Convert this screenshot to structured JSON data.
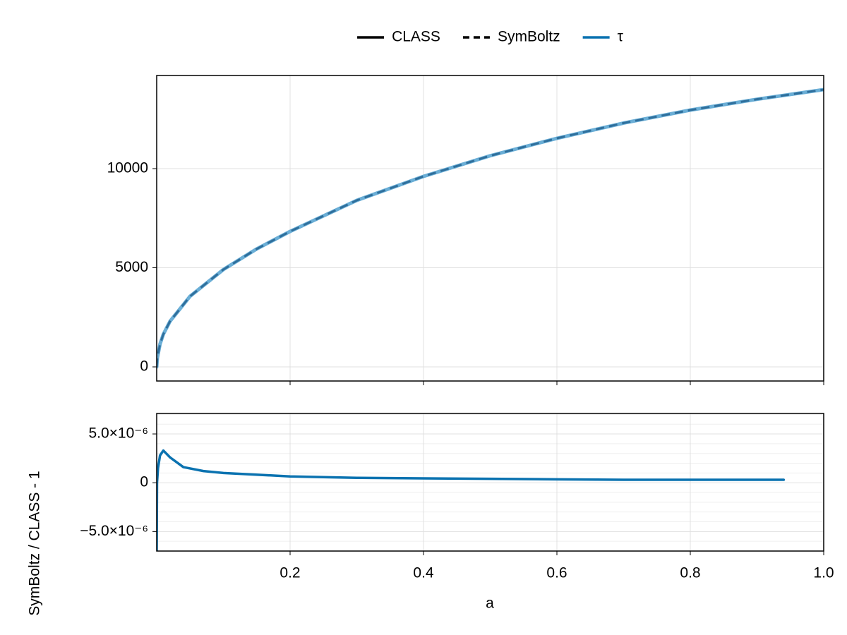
{
  "chart_data": [
    {
      "type": "line",
      "legend": [
        {
          "label": "CLASS",
          "color": "#000000",
          "dash": "solid"
        },
        {
          "label": "SymBoltz",
          "color": "#000000",
          "dash": "dashed"
        },
        {
          "label": "τ",
          "color": "#0a72b0",
          "dash": "solid"
        }
      ],
      "legend_position": "top",
      "x": [
        0,
        0.001,
        0.005,
        0.01,
        0.02,
        0.05,
        0.1,
        0.15,
        0.2,
        0.3,
        0.4,
        0.5,
        0.6,
        0.7,
        0.8,
        0.9,
        1.0
      ],
      "series": [
        {
          "name": "CLASS",
          "color": "#6aaed6",
          "dash": "solid",
          "values": [
            0,
            450,
            1150,
            1650,
            2300,
            3560,
            4911,
            5950,
            6833,
            8400,
            9609,
            10650,
            11530,
            12300,
            12954,
            13500,
            13986
          ]
        },
        {
          "name": "SymBoltz",
          "color": "#2f6f9c",
          "dash": "dashed",
          "values": [
            0,
            450,
            1150,
            1650,
            2300,
            3560,
            4911,
            5950,
            6833,
            8400,
            9609,
            10650,
            11530,
            12300,
            12954,
            13500,
            13986
          ]
        }
      ],
      "xlim": [
        0,
        1
      ],
      "xticks": [
        0.2,
        0.4,
        0.6,
        0.8,
        {
          "value": 1,
          "label": "1.0"
        }
      ],
      "ylim": [
        -712,
        14698
      ],
      "yticks": [
        0,
        5000,
        10000
      ],
      "grid": true
    },
    {
      "type": "line",
      "xlabel": "a",
      "ylabel": "SymBoltz / CLASS - 1",
      "x": [
        0,
        0.0005,
        0.002,
        0.005,
        0.01,
        0.02,
        0.04,
        0.07,
        0.1,
        0.2,
        0.3,
        0.4,
        0.5,
        0.6,
        0.7,
        0.8,
        0.94
      ],
      "series": [
        {
          "name": "τ",
          "color": "#0a72b0",
          "dash": "solid",
          "values": [
            -7e-06,
            0,
            1.5e-06,
            2.8e-06,
            3.3e-06,
            2.6e-06,
            1.6e-06,
            1.2e-06,
            1e-06,
            6.5e-07,
            5e-07,
            4.5e-07,
            4e-07,
            3.5e-07,
            3e-07,
            3e-07,
            3e-07
          ]
        }
      ],
      "xlim": [
        0,
        1
      ],
      "xticks": [
        0.2,
        0.4,
        0.6,
        0.8,
        {
          "value": 1,
          "label": "1.0"
        }
      ],
      "ylim": [
        -7e-06,
        7.1e-06
      ],
      "yticks": [
        {
          "value": -5e-06,
          "label": "−5.0×10⁻⁶"
        },
        0,
        {
          "value": 5e-06,
          "label": "5.0×10⁻⁶"
        }
      ],
      "yminorticks": [
        -7e-06,
        -6e-06,
        -4e-06,
        -3e-06,
        -2e-06,
        -1e-06,
        1e-06,
        2e-06,
        3e-06,
        4e-06,
        6e-06,
        7e-06
      ],
      "grid": true
    }
  ]
}
